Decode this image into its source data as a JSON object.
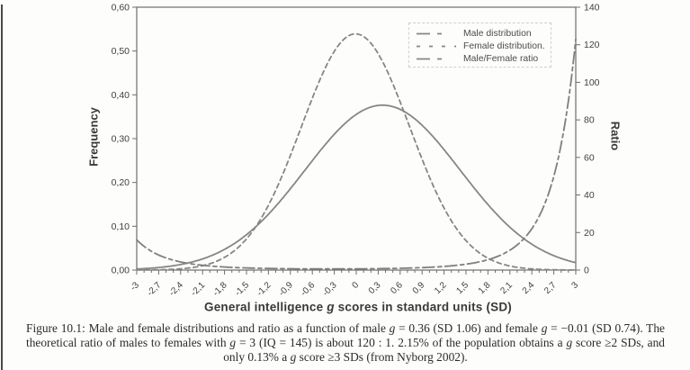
{
  "colors": {
    "curve": "#868686",
    "ratio_curve": "#7f7f7f",
    "plot_border": "#6e6e6e",
    "tick": "#6e6e6e",
    "tick_text": "#3f3f3f"
  },
  "chart_data": {
    "type": "line",
    "title": "",
    "x_axis": {
      "label_segments": [
        {
          "t": "General intelligence "
        },
        {
          "t": "g",
          "i": true
        },
        {
          "t": " scores in standard units (SD)"
        }
      ],
      "min": -3,
      "max": 3,
      "major_step": 0.3,
      "minor_step": 0.1,
      "tick_labels": [
        "-3",
        "-2,7",
        "-2,4",
        "-2,1",
        "-1,8",
        "-1,5",
        "-1,2",
        "-0,9",
        "-0,6",
        "-0,3",
        "0",
        "0,3",
        "0,6",
        "0,9",
        "1,2",
        "1,5",
        "1,8",
        "2,1",
        "2,4",
        "2,7",
        "3"
      ]
    },
    "y_left": {
      "label": "Frequency",
      "min": 0,
      "max": 0.6,
      "step": 0.1,
      "tick_labels": [
        "0,00",
        "0,10",
        "0,20",
        "0,30",
        "0,40",
        "0,50",
        "0,60"
      ],
      "grid": false
    },
    "y_right": {
      "label": "Ratio",
      "min": 0,
      "max": 140,
      "step": 20,
      "tick_labels": [
        "0",
        "20",
        "40",
        "60",
        "80",
        "100",
        "120",
        "140"
      ]
    },
    "series": [
      {
        "name": "Male distribution",
        "axis": "left",
        "line": "solid",
        "model": "normal_pdf",
        "mean": 0.36,
        "sd": 1.06,
        "peak_value": 0.376,
        "x": [
          -3,
          -2.7,
          -2.4,
          -2.1,
          -1.8,
          -1.5,
          -1.2,
          -0.9,
          -0.6,
          -0.3,
          0,
          0.3,
          0.6,
          0.9,
          1.2,
          1.5,
          1.8,
          2.1,
          2.4,
          2.7,
          3
        ],
        "values": [
          0.002,
          0.006,
          0.013,
          0.025,
          0.047,
          0.081,
          0.127,
          0.186,
          0.25,
          0.31,
          0.355,
          0.376,
          0.367,
          0.331,
          0.275,
          0.211,
          0.15,
          0.098,
          0.059,
          0.033,
          0.017
        ]
      },
      {
        "name": "Female distribution.",
        "axis": "left",
        "line": "dashed",
        "model": "normal_pdf",
        "mean": -0.01,
        "sd": 0.74,
        "peak_value": 0.539,
        "x": [
          -3,
          -2.7,
          -2.4,
          -2.1,
          -1.8,
          -1.5,
          -1.2,
          -0.9,
          -0.6,
          -0.3,
          0,
          0.3,
          0.6,
          0.9,
          1.2,
          1.5,
          1.8,
          2.1,
          2.4,
          2.7,
          3
        ],
        "values": [
          0.0,
          0.001,
          0.003,
          0.01,
          0.029,
          0.071,
          0.148,
          0.262,
          0.392,
          0.499,
          0.539,
          0.494,
          0.384,
          0.253,
          0.142,
          0.067,
          0.027,
          0.009,
          0.003,
          0.001,
          0.0
        ]
      },
      {
        "name": "Male/Female ratio",
        "axis": "right",
        "line": "dash-dot",
        "model": "ratio_male_over_female",
        "x": [
          -3,
          -2.7,
          -2.4,
          -2.1,
          -1.8,
          -1.5,
          -1.2,
          -0.9,
          -0.6,
          -0.3,
          0,
          0.3,
          0.6,
          0.9,
          1.2,
          1.5,
          1.8,
          2.1,
          2.4,
          2.7,
          3
        ],
        "values": [
          16.0,
          8.0,
          4.3,
          2.5,
          1.6,
          1.1,
          0.9,
          0.7,
          0.6,
          0.6,
          0.7,
          0.8,
          1.0,
          1.3,
          1.9,
          3.1,
          5.5,
          10.6,
          22.0,
          49.8,
          122.9
        ]
      }
    ],
    "legend": {
      "position": "top-right",
      "entries": [
        {
          "label": "Male distribution",
          "sample_dash": "15 8 5 30"
        },
        {
          "label": "Female distribution.",
          "sample_dash": "4 10"
        },
        {
          "label": "Male/Female ratio",
          "sample_dash": "15 8 5 30"
        }
      ]
    }
  },
  "caption": {
    "lines": [
      [
        {
          "t": "Figure 10.1:  Male and female distributions and ratio as a function of male "
        },
        {
          "t": "g",
          "i": true
        },
        {
          "t": " = 0.36 (SD 1.06) and female "
        },
        {
          "t": "g",
          "i": true
        },
        {
          "t": " = −0.01 (SD 0.74). The"
        }
      ],
      [
        {
          "t": "theoretical ratio of males to females with "
        },
        {
          "t": "g",
          "i": true
        },
        {
          "t": " = 3 (IQ = 145) is about 120 : 1. 2.15% of the population obtains a "
        },
        {
          "t": "g",
          "i": true
        },
        {
          "t": " score ≥2 SDs, and"
        }
      ],
      [
        {
          "t": "only 0.13% a "
        },
        {
          "t": "g",
          "i": true
        },
        {
          "t": " score ≥3 SDs (from Nyborg 2002)."
        }
      ]
    ]
  }
}
